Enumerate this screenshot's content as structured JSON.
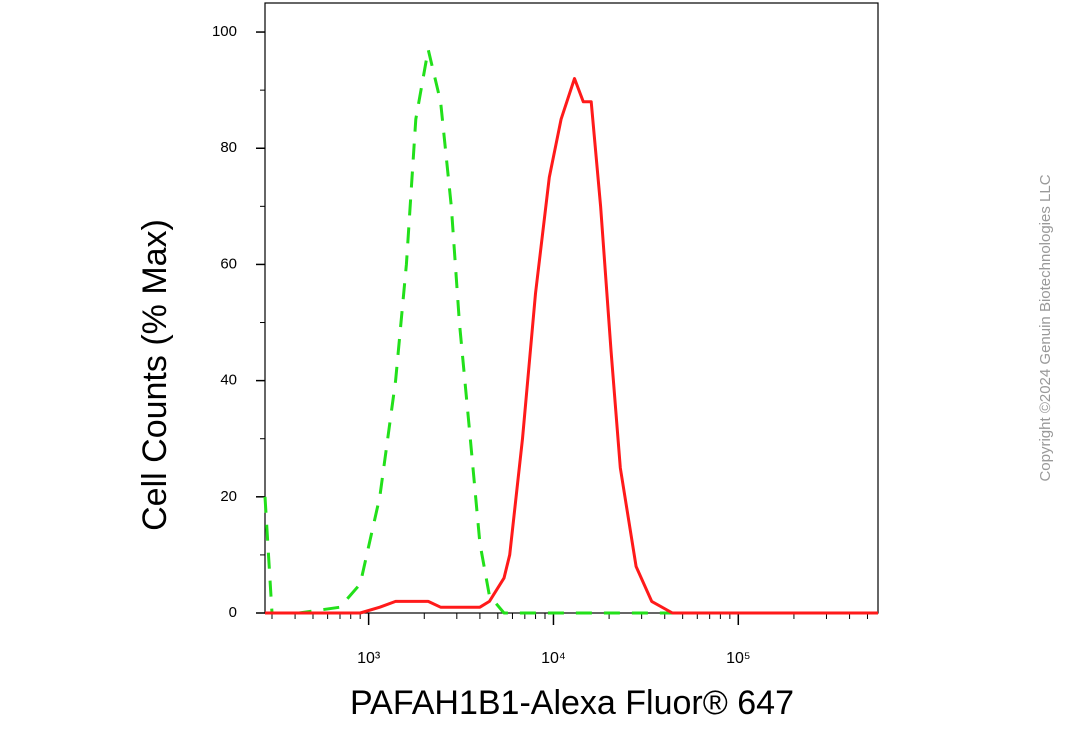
{
  "chart_data": {
    "type": "line",
    "xlabel": "PAFAH1B1-Alexa Fluor® 647",
    "ylabel": "Cell Counts (% Max)",
    "watermark": "Copyright ©2024 Genuin Biotechnologies LLC",
    "xscale": "log",
    "x": [
      275,
      300,
      420,
      700,
      900,
      1150,
      1400,
      1600,
      1800,
      2100,
      2450,
      2800,
      3100,
      3550,
      4000,
      4500,
      5400,
      5800,
      6800,
      8000,
      9500,
      11000,
      13000,
      14500,
      16000,
      18000,
      20500,
      23000,
      28000,
      34000,
      44000,
      100000,
      570000
    ],
    "series": [
      {
        "color": "#22e01a",
        "dash": true,
        "values": [
          20,
          0,
          0,
          1,
          5,
          20,
          40,
          60,
          85,
          97,
          88,
          70,
          50,
          30,
          12,
          3,
          0,
          0,
          0,
          0,
          0,
          0,
          0,
          0,
          0,
          0,
          0,
          0,
          0,
          0,
          0,
          0,
          0
        ]
      },
      {
        "color": "#ff1a1a",
        "dash": false,
        "values": [
          0,
          0,
          0,
          0,
          0,
          1,
          2,
          2,
          2,
          2,
          1,
          1,
          1,
          1,
          1,
          2,
          6,
          10,
          30,
          55,
          75,
          85,
          92,
          88,
          88,
          70,
          45,
          25,
          8,
          2,
          0,
          0,
          0
        ]
      }
    ],
    "xlim": [
      275,
      570000
    ],
    "ylim": [
      0,
      105
    ],
    "xticks": [
      {
        "value": 1000,
        "label": "10³"
      },
      {
        "value": 10000,
        "label": "10⁴"
      },
      {
        "value": 100000,
        "label": "10⁵"
      }
    ],
    "yticks": [
      0,
      20,
      40,
      60,
      80,
      100
    ]
  }
}
